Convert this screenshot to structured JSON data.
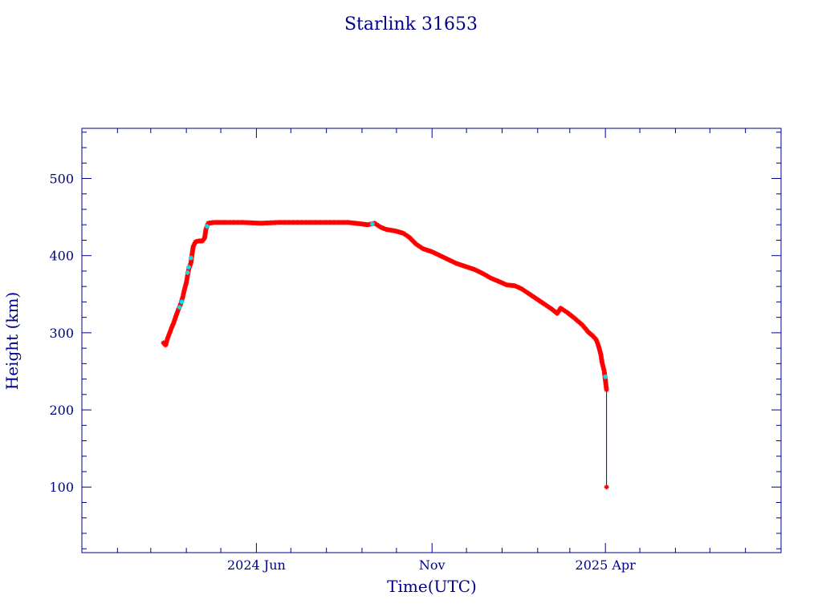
{
  "chart_data": {
    "type": "scatter",
    "title": "Starlink 31653",
    "xlabel": "Time(UTC)",
    "ylabel": "Height (km)",
    "ylim": [
      15,
      565
    ],
    "xlim": [
      "2024-01-01",
      "2025-09-01"
    ],
    "yticks": [
      100,
      200,
      300,
      400,
      500
    ],
    "xticks": [
      {
        "label": "2024 Jun",
        "date": "2024-06-01"
      },
      {
        "label": "Nov",
        "date": "2024-11-01"
      },
      {
        "label": "2025 Apr",
        "date": "2025-04-01"
      }
    ],
    "grid": false,
    "colors": {
      "axis": "#00008b",
      "marker": "#ff0000",
      "marker_alt": "#00e5ee",
      "decay_line": "#00008b"
    },
    "series": [
      {
        "points": [
          [
            "2024-03-12",
            287
          ],
          [
            "2024-03-14",
            284
          ],
          [
            "2024-03-15",
            290
          ],
          [
            "2024-03-17",
            298
          ],
          [
            "2024-03-19",
            306
          ],
          [
            "2024-03-21",
            313
          ],
          [
            "2024-03-23",
            322
          ],
          [
            "2024-03-25",
            330
          ],
          [
            "2024-03-27",
            337
          ],
          [
            "2024-03-29",
            347
          ],
          [
            "2024-03-30",
            354
          ],
          [
            "2024-04-01",
            365
          ],
          [
            "2024-04-02",
            374
          ],
          [
            "2024-04-03",
            382
          ],
          [
            "2024-04-05",
            391
          ],
          [
            "2024-04-06",
            402
          ],
          [
            "2024-04-07",
            412
          ],
          [
            "2024-04-09",
            418
          ],
          [
            "2024-04-12",
            419
          ],
          [
            "2024-04-15",
            419
          ],
          [
            "2024-04-17",
            423
          ],
          [
            "2024-04-18",
            434
          ],
          [
            "2024-04-20",
            442
          ],
          [
            "2024-04-25",
            443
          ],
          [
            "2024-05-05",
            443
          ],
          [
            "2024-05-20",
            443
          ],
          [
            "2024-06-05",
            442
          ],
          [
            "2024-06-20",
            443
          ],
          [
            "2024-07-05",
            443
          ],
          [
            "2024-07-20",
            443
          ],
          [
            "2024-08-05",
            443
          ],
          [
            "2024-08-20",
            443
          ],
          [
            "2024-09-01",
            441
          ],
          [
            "2024-09-06",
            440
          ],
          [
            "2024-09-12",
            442
          ],
          [
            "2024-09-17",
            437
          ],
          [
            "2024-09-22",
            434
          ],
          [
            "2024-09-30",
            432
          ],
          [
            "2024-10-07",
            429
          ],
          [
            "2024-10-12",
            424
          ],
          [
            "2024-10-18",
            415
          ],
          [
            "2024-10-24",
            409
          ],
          [
            "2024-11-01",
            405
          ],
          [
            "2024-11-08",
            400
          ],
          [
            "2024-11-15",
            395
          ],
          [
            "2024-11-22",
            390
          ],
          [
            "2024-11-30",
            386
          ],
          [
            "2024-12-08",
            382
          ],
          [
            "2024-12-15",
            377
          ],
          [
            "2024-12-22",
            371
          ],
          [
            "2024-12-30",
            366
          ],
          [
            "2025-01-05",
            362
          ],
          [
            "2025-01-12",
            361
          ],
          [
            "2025-01-18",
            357
          ],
          [
            "2025-01-24",
            351
          ],
          [
            "2025-01-31",
            344
          ],
          [
            "2025-02-07",
            337
          ],
          [
            "2025-02-13",
            331
          ],
          [
            "2025-02-18",
            325
          ],
          [
            "2025-02-21",
            332
          ],
          [
            "2025-02-27",
            326
          ],
          [
            "2025-03-05",
            319
          ],
          [
            "2025-03-12",
            310
          ],
          [
            "2025-03-17",
            301
          ],
          [
            "2025-03-21",
            296
          ],
          [
            "2025-03-24",
            291
          ],
          [
            "2025-03-26",
            283
          ],
          [
            "2025-03-28",
            272
          ],
          [
            "2025-03-29",
            262
          ],
          [
            "2025-03-31",
            250
          ],
          [
            "2025-04-01",
            238
          ],
          [
            "2025-04-02",
            226
          ],
          [
            "2025-04-02",
            100
          ]
        ]
      }
    ],
    "alt_points": [
      [
        "2024-03-26",
        333
      ],
      [
        "2024-03-28",
        340
      ],
      [
        "2024-04-02",
        378
      ],
      [
        "2024-04-03",
        385
      ],
      [
        "2024-04-05",
        397
      ],
      [
        "2024-04-19",
        438
      ],
      [
        "2024-09-10",
        441
      ],
      [
        "2025-04-01",
        243
      ]
    ]
  }
}
